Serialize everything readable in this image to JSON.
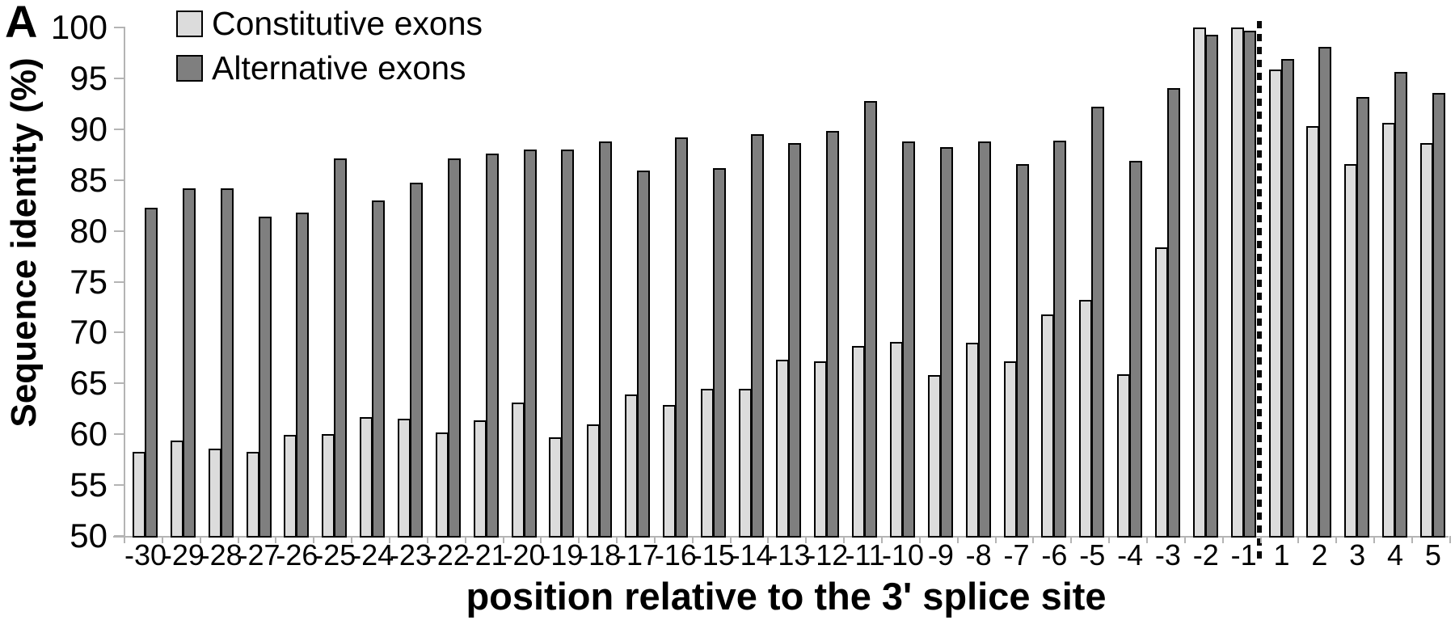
{
  "panel_label": "A",
  "legend": {
    "items": [
      {
        "label": "Constitutive exons",
        "color": "#dcdcdc"
      },
      {
        "label": "Alternative exons",
        "color": "#7f7f7f"
      }
    ]
  },
  "colors": {
    "constitutive_fill": "#dcdcdc",
    "alternative_fill": "#7f7f7f",
    "bar_border": "#000000",
    "axis": "#b4b4b4",
    "text": "#000000",
    "background": "#ffffff"
  },
  "chart_data": {
    "type": "bar",
    "title": "",
    "xlabel": "position relative to the 3' splice site",
    "ylabel": "Sequence identity (%)",
    "ylim": [
      50,
      100
    ],
    "yticks": [
      50,
      55,
      60,
      65,
      70,
      75,
      80,
      85,
      90,
      95,
      100
    ],
    "grid": false,
    "legend_position": "top-left",
    "separator_between": [
      "-1",
      "1"
    ],
    "separator_style": "vertical dotted line",
    "categories": [
      "-30",
      "-29",
      "-28",
      "-27",
      "-26",
      "-25",
      "-24",
      "-23",
      "-22",
      "-21",
      "-20",
      "-19",
      "-18",
      "-17",
      "-16",
      "-15",
      "-14",
      "-13",
      "-12",
      "-11",
      "-10",
      "-9",
      "-8",
      "-7",
      "-6",
      "-5",
      "-4",
      "-3",
      "-2",
      "-1",
      "1",
      "2",
      "3",
      "4",
      "5"
    ],
    "series": [
      {
        "name": "Constitutive exons",
        "color": "#dcdcdc",
        "values": [
          58.3,
          59.4,
          58.6,
          58.3,
          59.9,
          60.0,
          61.7,
          61.5,
          60.2,
          61.4,
          63.1,
          59.7,
          61.0,
          63.9,
          62.9,
          64.5,
          64.5,
          67.3,
          67.2,
          68.7,
          69.1,
          65.8,
          69.0,
          67.2,
          71.8,
          73.2,
          65.9,
          78.4,
          100,
          100,
          95.9,
          90.3,
          86.6,
          90.6,
          88.6
        ]
      },
      {
        "name": "Alternative exons",
        "color": "#7f7f7f",
        "values": [
          82.3,
          84.2,
          84.2,
          81.4,
          81.8,
          87.1,
          83.0,
          84.7,
          87.1,
          87.6,
          88.0,
          88.0,
          88.8,
          85.9,
          89.2,
          86.2,
          89.5,
          88.6,
          89.8,
          92.8,
          88.8,
          88.2,
          88.8,
          86.6,
          88.9,
          92.2,
          86.9,
          94.0,
          99.3,
          99.7,
          96.9,
          98.1,
          93.2,
          95.6,
          93.6
        ]
      }
    ]
  }
}
